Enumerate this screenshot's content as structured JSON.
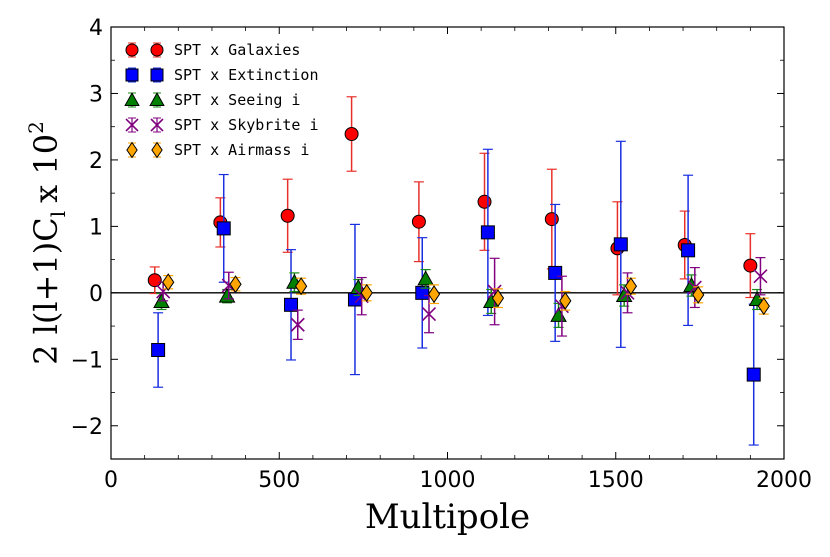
{
  "chart_data": {
    "type": "scatter",
    "xlabel": "Multipole",
    "ylabel": "2 l(l+1)C",
    "ylabel_sub": "l",
    "ylabel_times": "x 10",
    "ylabel_exp": "2",
    "xlim": [
      0,
      2000
    ],
    "ylim": [
      -2.5,
      4
    ],
    "xticks": [
      0,
      500,
      1000,
      1500,
      2000
    ],
    "yticks": [
      -2,
      -1,
      0,
      1,
      2,
      3,
      4
    ],
    "ytick_labels": [
      "−2",
      "−1",
      "0",
      "1",
      "2",
      "3",
      "4"
    ],
    "zero_line": true,
    "legend_position": "top-left",
    "series": [
      {
        "name": "SPT x Galaxies",
        "marker": "circle",
        "color": "#ff0000",
        "edge": "#000000",
        "error_color": "#e8302a",
        "x": [
          130,
          325,
          525,
          715,
          915,
          1110,
          1310,
          1505,
          1705,
          1900
        ],
        "y": [
          0.19,
          1.06,
          1.16,
          2.39,
          1.07,
          1.37,
          1.11,
          0.67,
          0.72,
          0.41
        ],
        "err": [
          0.2,
          0.37,
          0.55,
          0.56,
          0.6,
          0.73,
          0.75,
          0.7,
          0.51,
          0.48
        ]
      },
      {
        "name": "SPT x Extinction",
        "marker": "square",
        "color": "#0000ff",
        "edge": "#000000",
        "error_color": "#1a2fe0",
        "x": [
          140,
          335,
          535,
          725,
          925,
          1120,
          1320,
          1515,
          1715,
          1910
        ],
        "y": [
          -0.86,
          0.97,
          -0.18,
          -0.1,
          0.0,
          0.91,
          0.3,
          0.73,
          0.64,
          -1.23
        ],
        "err": [
          0.56,
          0.81,
          0.83,
          1.13,
          0.83,
          1.25,
          1.03,
          1.55,
          1.13,
          1.06
        ]
      },
      {
        "name": "SPT x Seeing i",
        "marker": "triangle",
        "color": "#008000",
        "edge": "#000000",
        "error_color": "#1a8a1a",
        "x": [
          150,
          345,
          545,
          735,
          935,
          1130,
          1330,
          1525,
          1725,
          1920
        ],
        "y": [
          -0.13,
          -0.05,
          0.16,
          0.08,
          0.21,
          -0.13,
          -0.34,
          -0.04,
          0.11,
          -0.1
        ],
        "err": [
          0.12,
          0.1,
          0.14,
          0.12,
          0.14,
          0.18,
          0.18,
          0.16,
          0.16,
          0.15
        ]
      },
      {
        "name": "SPT x Skybrite i",
        "marker": "x",
        "color": "#800080",
        "edge": "#800080",
        "error_color": "#800080",
        "x": [
          155,
          350,
          555,
          745,
          945,
          1140,
          1340,
          1535,
          1735,
          1930
        ],
        "y": [
          0.02,
          0.11,
          -0.48,
          -0.05,
          -0.32,
          0.02,
          -0.2,
          0.0,
          0.08,
          0.25
        ],
        "err": [
          0.14,
          0.2,
          0.22,
          0.28,
          0.28,
          0.5,
          0.45,
          0.3,
          0.3,
          0.28
        ]
      },
      {
        "name": "SPT x Airmass i",
        "marker": "diamond",
        "color": "#ffa500",
        "edge": "#000000",
        "error_color": "#ffa500",
        "x": [
          170,
          370,
          565,
          760,
          960,
          1150,
          1350,
          1545,
          1745,
          1940
        ],
        "y": [
          0.16,
          0.13,
          0.1,
          0.0,
          -0.02,
          -0.08,
          -0.12,
          0.1,
          -0.03,
          -0.2
        ],
        "err": [
          0.1,
          0.1,
          0.12,
          0.12,
          0.14,
          0.14,
          0.14,
          0.12,
          0.12,
          0.12
        ]
      }
    ]
  }
}
